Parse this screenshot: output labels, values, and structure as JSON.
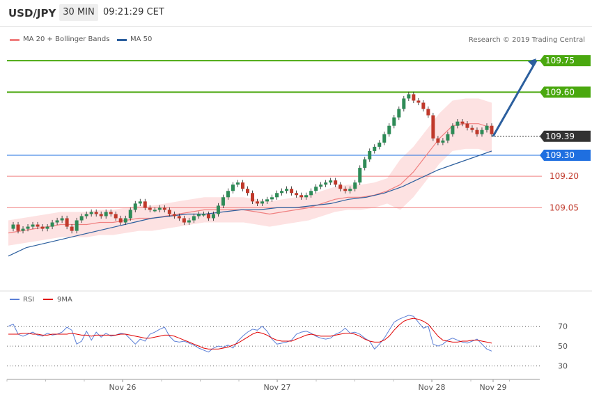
{
  "header": {
    "symbol": "USD/JPY",
    "timeframe": "30 MIN",
    "time": "09:21:29 CET"
  },
  "legend": {
    "ma20": {
      "label": "MA 20 + Bollinger Bands",
      "color": "#f08080"
    },
    "ma50": {
      "label": "MA 50",
      "color": "#2c5f9e"
    },
    "copyright": "Research © 2019 Trading Central"
  },
  "colors": {
    "up": "#2e8b57",
    "down": "#c0392b",
    "target": "#4aa80f",
    "pivot": "#1f6fe0",
    "support": "#f08080",
    "last": "#333333",
    "rsi": "#5b7fd6",
    "rsi_ma": "#e00000"
  },
  "levels": [
    {
      "value": 109.75,
      "label": "109.75",
      "kind": "target"
    },
    {
      "value": 109.6,
      "label": "109.60",
      "kind": "target"
    },
    {
      "value": 109.39,
      "label": "109.39",
      "kind": "last"
    },
    {
      "value": 109.3,
      "label": "109.30",
      "kind": "pivot"
    },
    {
      "value": 109.2,
      "label": "109.20",
      "kind": "support"
    },
    {
      "value": 109.05,
      "label": "109.05",
      "kind": "support"
    }
  ],
  "rsi_legend": {
    "rsi": "RSI",
    "ma": "9MA"
  },
  "rsi_axis": [
    "70",
    "50",
    "30"
  ],
  "x_labels": [
    "Nov 26",
    "Nov 27",
    "Nov 28",
    "Nov 29"
  ],
  "chart_data": {
    "type": "candlestick",
    "ylim": [
      108.72,
      109.82
    ],
    "price": [
      108.95,
      108.97,
      108.94,
      108.95,
      108.96,
      108.97,
      108.96,
      108.95,
      108.96,
      108.98,
      108.99,
      109.0,
      108.96,
      108.94,
      108.99,
      109.01,
      109.02,
      109.03,
      109.02,
      109.01,
      109.03,
      109.02,
      109.0,
      108.98,
      109.0,
      109.04,
      109.07,
      109.08,
      109.05,
      109.04,
      109.04,
      109.05,
      109.04,
      109.02,
      109.01,
      109.0,
      108.98,
      108.99,
      109.01,
      109.02,
      109.02,
      109.0,
      109.02,
      109.06,
      109.1,
      109.13,
      109.16,
      109.17,
      109.14,
      109.12,
      109.08,
      109.07,
      109.08,
      109.09,
      109.1,
      109.12,
      109.13,
      109.14,
      109.12,
      109.11,
      109.1,
      109.11,
      109.13,
      109.15,
      109.16,
      109.17,
      109.18,
      109.16,
      109.14,
      109.13,
      109.14,
      109.17,
      109.24,
      109.28,
      109.32,
      109.34,
      109.36,
      109.4,
      109.44,
      109.48,
      109.52,
      109.57,
      109.59,
      109.56,
      109.55,
      109.52,
      109.49,
      109.38,
      109.36,
      109.37,
      109.4,
      109.44,
      109.46,
      109.45,
      109.43,
      109.42,
      109.4,
      109.42,
      109.44,
      109.4
    ],
    "ma20": [
      108.93,
      108.94,
      108.95,
      108.96,
      108.97,
      108.97,
      108.97,
      108.98,
      108.98,
      108.99,
      109.0,
      109.0,
      109.01,
      109.02,
      109.03,
      109.04,
      109.04,
      109.04,
      109.04,
      109.03,
      109.02,
      109.03,
      109.04,
      109.05,
      109.07,
      109.09,
      109.1,
      109.1,
      109.11,
      109.13,
      109.16,
      109.22,
      109.3,
      109.38,
      109.44,
      109.45,
      109.45,
      109.43
    ],
    "ma50": [
      108.82,
      108.86,
      108.88,
      108.9,
      108.92,
      108.94,
      108.96,
      108.98,
      109.0,
      109.01,
      109.02,
      109.02,
      109.03,
      109.04,
      109.04,
      109.05,
      109.05,
      109.06,
      109.07,
      109.09,
      109.1,
      109.12,
      109.15,
      109.19,
      109.23,
      109.26,
      109.29,
      109.32
    ],
    "rsi": [
      70,
      72,
      62,
      60,
      62,
      64,
      61,
      60,
      63,
      61,
      62,
      64,
      69,
      66,
      52,
      55,
      65,
      56,
      64,
      59,
      63,
      60,
      61,
      63,
      62,
      57,
      52,
      57,
      55,
      62,
      64,
      67,
      69,
      60,
      55,
      54,
      55,
      53,
      51,
      48,
      46,
      44,
      48,
      50,
      49,
      51,
      48,
      55,
      60,
      64,
      67,
      66,
      70,
      65,
      57,
      52,
      53,
      54,
      56,
      62,
      64,
      65,
      63,
      60,
      58,
      57,
      58,
      62,
      64,
      68,
      63,
      64,
      62,
      58,
      55,
      47,
      52,
      58,
      66,
      74,
      77,
      79,
      81,
      80,
      74,
      68,
      70,
      52,
      50,
      52,
      56,
      58,
      56,
      54,
      53,
      55,
      57,
      52,
      47,
      45
    ],
    "rsi_ma": [
      62,
      62,
      62,
      63,
      63,
      62,
      62,
      61,
      61,
      62,
      62,
      62,
      62,
      63,
      62,
      61,
      61,
      60,
      61,
      61,
      61,
      61,
      61,
      62,
      62,
      61,
      60,
      59,
      58,
      58,
      59,
      60,
      61,
      61,
      60,
      58,
      56,
      54,
      52,
      50,
      48,
      47,
      47,
      47,
      48,
      49,
      51,
      53,
      56,
      59,
      62,
      64,
      63,
      61,
      58,
      56,
      55,
      55,
      55,
      57,
      59,
      61,
      62,
      61,
      60,
      60,
      60,
      61,
      62,
      63,
      63,
      62,
      60,
      57,
      55,
      54,
      54,
      56,
      60,
      66,
      71,
      75,
      77,
      78,
      77,
      75,
      72,
      66,
      60,
      56,
      55,
      54,
      54,
      55,
      55,
      56,
      56,
      55,
      54,
      53
    ],
    "rsi_ylim": [
      20,
      90
    ]
  }
}
